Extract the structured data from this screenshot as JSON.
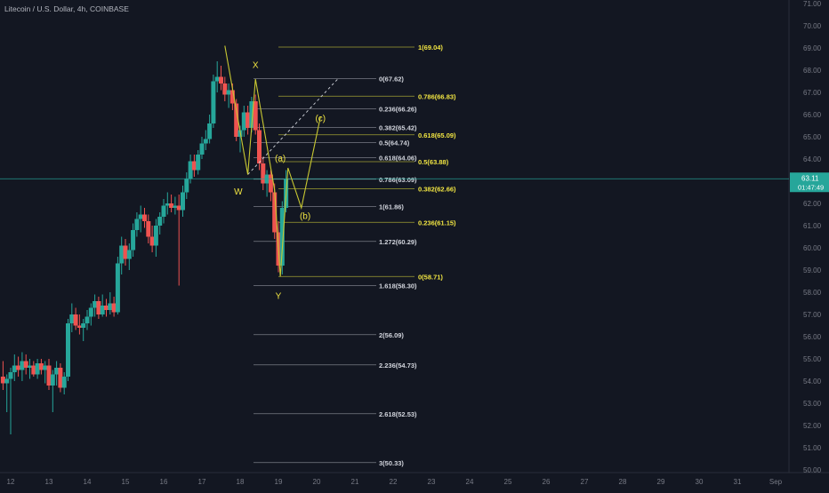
{
  "header": {
    "symbol": "Litecoin / U.S. Dollar",
    "interval": "4h",
    "exchange": "COINBASE",
    "sep": "/"
  },
  "colors": {
    "background": "#131722",
    "up": "#26a69a",
    "down": "#ef5350",
    "fib_white": "#d1d4dc",
    "fib_yellow": "#f0e442",
    "fib_line_white": "#787b86",
    "fib_line_yellow": "#a0a032",
    "wave": "#c8c832",
    "price_line": "#26a69a"
  },
  "chart_data": {
    "type": "candlestick",
    "symbol": "LTCUSD",
    "exchange": "COINBASE",
    "interval": "4h",
    "ylim": [
      49.8,
      71.2
    ],
    "y_ticks": [
      "50.00",
      "51.00",
      "52.00",
      "53.00",
      "54.00",
      "55.00",
      "56.00",
      "57.00",
      "58.00",
      "59.00",
      "60.00",
      "61.00",
      "62.00",
      "63.00",
      "64.00",
      "65.00",
      "66.00",
      "67.00",
      "68.00",
      "69.00",
      "70.00",
      "71.00"
    ],
    "x_ticks": [
      {
        "label": "12",
        "day": 12
      },
      {
        "label": "13",
        "day": 13
      },
      {
        "label": "14",
        "day": 14
      },
      {
        "label": "15",
        "day": 15
      },
      {
        "label": "16",
        "day": 16
      },
      {
        "label": "17",
        "day": 17
      },
      {
        "label": "18",
        "day": 18
      },
      {
        "label": "19",
        "day": 19
      },
      {
        "label": "20",
        "day": 20
      },
      {
        "label": "21",
        "day": 21
      },
      {
        "label": "22",
        "day": 22
      },
      {
        "label": "23",
        "day": 23
      },
      {
        "label": "24",
        "day": 24
      },
      {
        "label": "25",
        "day": 25
      },
      {
        "label": "26",
        "day": 26
      },
      {
        "label": "27",
        "day": 27
      },
      {
        "label": "28",
        "day": 28
      },
      {
        "label": "29",
        "day": 29
      },
      {
        "label": "30",
        "day": 30
      },
      {
        "label": "31",
        "day": 31
      },
      {
        "label": "Sep",
        "day": 32
      }
    ],
    "last_price": {
      "value": 63.11,
      "label": "63.11",
      "countdown": "01:47:49"
    },
    "candles": [
      {
        "t": 11.8,
        "o": 54.2,
        "h": 54.9,
        "l": 53.6,
        "c": 53.9
      },
      {
        "t": 11.9,
        "o": 53.9,
        "h": 54.3,
        "l": 52.6,
        "c": 54.1
      },
      {
        "t": 12.0,
        "o": 54.1,
        "h": 54.6,
        "l": 51.6,
        "c": 54.4
      },
      {
        "t": 12.1,
        "o": 54.4,
        "h": 55.2,
        "l": 54.0,
        "c": 54.7
      },
      {
        "t": 12.2,
        "o": 54.7,
        "h": 55.1,
        "l": 54.2,
        "c": 54.5
      },
      {
        "t": 12.3,
        "o": 54.5,
        "h": 55.3,
        "l": 54.0,
        "c": 54.9
      },
      {
        "t": 12.4,
        "o": 54.9,
        "h": 55.2,
        "l": 54.3,
        "c": 54.6
      },
      {
        "t": 12.5,
        "o": 54.6,
        "h": 55.0,
        "l": 54.1,
        "c": 54.7
      },
      {
        "t": 12.6,
        "o": 54.7,
        "h": 54.9,
        "l": 54.2,
        "c": 54.3
      },
      {
        "t": 12.7,
        "o": 54.3,
        "h": 55.0,
        "l": 54.1,
        "c": 54.8
      },
      {
        "t": 12.8,
        "o": 54.8,
        "h": 55.0,
        "l": 54.3,
        "c": 54.5
      },
      {
        "t": 12.9,
        "o": 54.5,
        "h": 54.9,
        "l": 53.9,
        "c": 54.7
      },
      {
        "t": 13.0,
        "o": 54.7,
        "h": 55.0,
        "l": 53.6,
        "c": 53.8
      },
      {
        "t": 13.1,
        "o": 53.8,
        "h": 54.5,
        "l": 52.6,
        "c": 54.3
      },
      {
        "t": 13.2,
        "o": 54.3,
        "h": 54.9,
        "l": 53.8,
        "c": 54.6
      },
      {
        "t": 13.3,
        "o": 54.6,
        "h": 54.8,
        "l": 53.5,
        "c": 53.7
      },
      {
        "t": 13.4,
        "o": 53.7,
        "h": 54.4,
        "l": 53.4,
        "c": 54.2
      },
      {
        "t": 13.5,
        "o": 54.2,
        "h": 56.8,
        "l": 54.0,
        "c": 56.6
      },
      {
        "t": 13.6,
        "o": 56.6,
        "h": 57.5,
        "l": 56.2,
        "c": 57.0
      },
      {
        "t": 13.7,
        "o": 57.0,
        "h": 57.3,
        "l": 56.3,
        "c": 56.5
      },
      {
        "t": 13.8,
        "o": 56.5,
        "h": 57.0,
        "l": 56.1,
        "c": 56.4
      },
      {
        "t": 13.9,
        "o": 56.4,
        "h": 56.8,
        "l": 55.8,
        "c": 56.6
      },
      {
        "t": 14.0,
        "o": 56.6,
        "h": 57.2,
        "l": 56.3,
        "c": 56.9
      },
      {
        "t": 14.1,
        "o": 56.9,
        "h": 57.5,
        "l": 56.5,
        "c": 57.3
      },
      {
        "t": 14.2,
        "o": 57.3,
        "h": 57.9,
        "l": 56.9,
        "c": 57.6
      },
      {
        "t": 14.3,
        "o": 57.6,
        "h": 57.8,
        "l": 56.8,
        "c": 57.0
      },
      {
        "t": 14.4,
        "o": 57.0,
        "h": 57.9,
        "l": 56.9,
        "c": 57.4
      },
      {
        "t": 14.5,
        "o": 57.4,
        "h": 57.7,
        "l": 56.9,
        "c": 57.2
      },
      {
        "t": 14.6,
        "o": 57.2,
        "h": 58.0,
        "l": 57.0,
        "c": 57.5
      },
      {
        "t": 14.7,
        "o": 57.5,
        "h": 57.8,
        "l": 56.9,
        "c": 57.1
      },
      {
        "t": 14.8,
        "o": 57.1,
        "h": 59.6,
        "l": 57.0,
        "c": 59.3
      },
      {
        "t": 14.9,
        "o": 59.3,
        "h": 60.5,
        "l": 58.8,
        "c": 60.1
      },
      {
        "t": 15.0,
        "o": 60.1,
        "h": 60.4,
        "l": 59.2,
        "c": 59.5
      },
      {
        "t": 15.1,
        "o": 59.5,
        "h": 60.2,
        "l": 59.0,
        "c": 59.9
      },
      {
        "t": 15.2,
        "o": 59.9,
        "h": 61.1,
        "l": 59.6,
        "c": 60.8
      },
      {
        "t": 15.3,
        "o": 60.8,
        "h": 61.6,
        "l": 60.5,
        "c": 61.3
      },
      {
        "t": 15.4,
        "o": 61.3,
        "h": 61.9,
        "l": 60.7,
        "c": 61.5
      },
      {
        "t": 15.5,
        "o": 61.5,
        "h": 61.8,
        "l": 60.9,
        "c": 61.2
      },
      {
        "t": 15.6,
        "o": 61.2,
        "h": 61.5,
        "l": 60.2,
        "c": 60.5
      },
      {
        "t": 15.7,
        "o": 60.5,
        "h": 61.0,
        "l": 59.8,
        "c": 60.1
      },
      {
        "t": 15.8,
        "o": 60.1,
        "h": 61.3,
        "l": 59.6,
        "c": 61.0
      },
      {
        "t": 15.9,
        "o": 61.0,
        "h": 61.6,
        "l": 60.6,
        "c": 61.4
      },
      {
        "t": 16.0,
        "o": 61.4,
        "h": 62.2,
        "l": 61.1,
        "c": 61.9
      },
      {
        "t": 16.1,
        "o": 61.9,
        "h": 62.5,
        "l": 61.5,
        "c": 62.0
      },
      {
        "t": 16.2,
        "o": 62.0,
        "h": 62.4,
        "l": 61.6,
        "c": 61.8
      },
      {
        "t": 16.3,
        "o": 61.8,
        "h": 62.3,
        "l": 61.5,
        "c": 61.9
      },
      {
        "t": 16.4,
        "o": 61.9,
        "h": 62.4,
        "l": 58.3,
        "c": 61.7
      },
      {
        "t": 16.5,
        "o": 61.7,
        "h": 62.8,
        "l": 61.4,
        "c": 62.5
      },
      {
        "t": 16.6,
        "o": 62.5,
        "h": 63.4,
        "l": 62.2,
        "c": 63.1
      },
      {
        "t": 16.7,
        "o": 63.1,
        "h": 64.2,
        "l": 62.9,
        "c": 63.9
      },
      {
        "t": 16.8,
        "o": 63.9,
        "h": 64.2,
        "l": 63.2,
        "c": 63.5
      },
      {
        "t": 16.9,
        "o": 63.5,
        "h": 64.4,
        "l": 63.3,
        "c": 64.2
      },
      {
        "t": 17.0,
        "o": 64.2,
        "h": 65.0,
        "l": 64.0,
        "c": 64.7
      },
      {
        "t": 17.1,
        "o": 64.7,
        "h": 65.3,
        "l": 64.4,
        "c": 64.9
      },
      {
        "t": 17.2,
        "o": 64.9,
        "h": 66.0,
        "l": 64.7,
        "c": 65.6
      },
      {
        "t": 17.3,
        "o": 65.6,
        "h": 67.8,
        "l": 65.4,
        "c": 67.5
      },
      {
        "t": 17.4,
        "o": 67.5,
        "h": 68.4,
        "l": 67.0,
        "c": 67.7
      },
      {
        "t": 17.5,
        "o": 67.7,
        "h": 68.2,
        "l": 67.1,
        "c": 67.4
      },
      {
        "t": 17.6,
        "o": 67.4,
        "h": 67.7,
        "l": 66.6,
        "c": 66.9
      },
      {
        "t": 17.7,
        "o": 66.9,
        "h": 67.4,
        "l": 66.3,
        "c": 67.1
      },
      {
        "t": 17.8,
        "o": 67.1,
        "h": 67.4,
        "l": 66.2,
        "c": 66.5
      },
      {
        "t": 17.9,
        "o": 66.5,
        "h": 66.7,
        "l": 64.8,
        "c": 65.0
      },
      {
        "t": 18.0,
        "o": 65.0,
        "h": 65.5,
        "l": 64.3,
        "c": 65.3
      },
      {
        "t": 18.1,
        "o": 65.3,
        "h": 66.4,
        "l": 65.0,
        "c": 66.1
      },
      {
        "t": 18.2,
        "o": 66.1,
        "h": 66.4,
        "l": 65.1,
        "c": 65.4
      },
      {
        "t": 18.3,
        "o": 65.4,
        "h": 66.8,
        "l": 65.2,
        "c": 66.6
      },
      {
        "t": 18.4,
        "o": 66.6,
        "h": 66.9,
        "l": 65.1,
        "c": 65.3
      },
      {
        "t": 18.5,
        "o": 65.3,
        "h": 65.6,
        "l": 63.5,
        "c": 63.8
      },
      {
        "t": 18.6,
        "o": 63.8,
        "h": 64.1,
        "l": 62.6,
        "c": 62.9
      },
      {
        "t": 18.7,
        "o": 62.9,
        "h": 63.5,
        "l": 62.3,
        "c": 63.3
      },
      {
        "t": 18.8,
        "o": 63.3,
        "h": 63.5,
        "l": 62.1,
        "c": 62.5
      },
      {
        "t": 18.9,
        "o": 62.5,
        "h": 62.9,
        "l": 60.4,
        "c": 60.7
      },
      {
        "t": 19.0,
        "o": 60.7,
        "h": 61.2,
        "l": 58.9,
        "c": 59.2
      },
      {
        "t": 19.1,
        "o": 59.2,
        "h": 62.1,
        "l": 58.8,
        "c": 61.8
      },
      {
        "t": 19.2,
        "o": 61.8,
        "h": 63.5,
        "l": 61.6,
        "c": 63.11
      }
    ],
    "fib_white": [
      {
        "label": "0(67.62)",
        "value": 67.62
      },
      {
        "label": "0.236(66.26)",
        "value": 66.26
      },
      {
        "label": "0.382(65.42)",
        "value": 65.42
      },
      {
        "label": "0.5(64.74)",
        "value": 64.74
      },
      {
        "label": "0.618(64.06)",
        "value": 64.06
      },
      {
        "label": "0.786(63.09)",
        "value": 63.09
      },
      {
        "label": "1(61.86)",
        "value": 61.86
      },
      {
        "label": "1.272(60.29)",
        "value": 60.29
      },
      {
        "label": "1.618(58.30)",
        "value": 58.3
      },
      {
        "label": "2(56.09)",
        "value": 56.09
      },
      {
        "label": "2.236(54.73)",
        "value": 54.73
      },
      {
        "label": "2.618(52.53)",
        "value": 52.53
      },
      {
        "label": "3(50.33)",
        "value": 50.33
      }
    ],
    "fib_yellow": [
      {
        "label": "1(69.04)",
        "value": 69.04
      },
      {
        "label": "0.786(66.83)",
        "value": 66.83
      },
      {
        "label": "0.618(65.09)",
        "value": 65.09
      },
      {
        "label": "0.5(63.88)",
        "value": 63.88
      },
      {
        "label": "0.382(62.66)",
        "value": 62.66
      },
      {
        "label": "0.236(61.15)",
        "value": 61.15
      },
      {
        "label": "0(58.71)",
        "value": 58.71
      }
    ],
    "wave_labels": [
      {
        "text": "X",
        "t": 18.4,
        "y": 68.1
      },
      {
        "text": "W",
        "t": 17.95,
        "y": 62.4
      },
      {
        "text": "Y",
        "t": 19.0,
        "y": 57.7
      },
      {
        "text": "(a)",
        "t": 19.05,
        "y": 63.9
      },
      {
        "text": "(b)",
        "t": 19.7,
        "y": 61.3
      },
      {
        "text": "(c)",
        "t": 20.1,
        "y": 65.7
      }
    ],
    "wave_path": [
      {
        "t": 17.6,
        "y": 69.1
      },
      {
        "t": 18.2,
        "y": 63.3
      },
      {
        "t": 18.4,
        "y": 67.6
      },
      {
        "t": 18.9,
        "y": 62.6
      },
      {
        "t": 19.05,
        "y": 58.7
      },
      {
        "t": 19.25,
        "y": 63.6
      },
      {
        "t": 19.6,
        "y": 61.8
      },
      {
        "t": 20.1,
        "y": 65.9
      }
    ],
    "trend_dashed": [
      {
        "t": 18.2,
        "y": 63.3
      },
      {
        "t": 20.55,
        "y": 67.6
      }
    ]
  }
}
